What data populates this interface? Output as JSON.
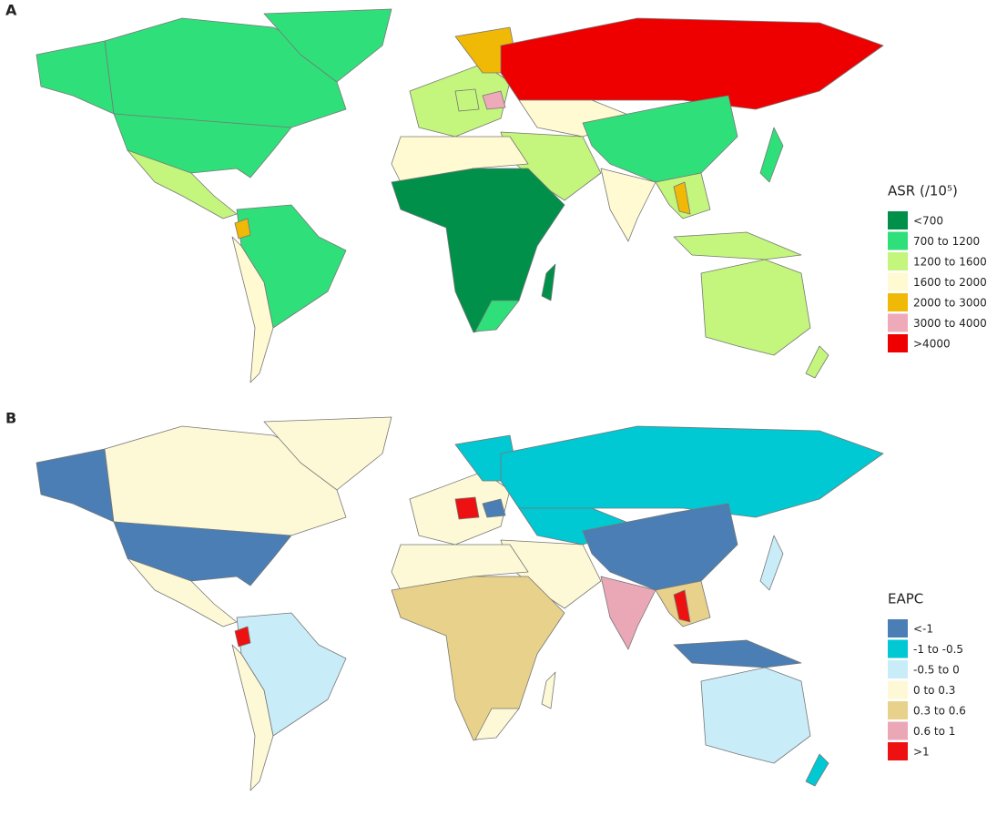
{
  "panels": [
    {
      "label": "A",
      "legend": {
        "title": "ASR (/10⁵)",
        "items": [
          {
            "label": "<700",
            "color": "#00904a"
          },
          {
            "label": "700 to 1200",
            "color": "#2fe07a"
          },
          {
            "label": "1200 to 1600",
            "color": "#c4f57c"
          },
          {
            "label": "1600 to 2000",
            "color": "#fffad2"
          },
          {
            "label": "2000 to 3000",
            "color": "#f0b905"
          },
          {
            "label": "3000 to 4000",
            "color": "#eeaab9"
          },
          {
            "label": ">4000",
            "color": "#ee0000"
          }
        ]
      }
    },
    {
      "label": "B",
      "legend": {
        "title": "EAPC",
        "items": [
          {
            "label": "<-1",
            "color": "#4a7eb4"
          },
          {
            "label": "-1 to -0.5",
            "color": "#00c9d3"
          },
          {
            "label": "-0.5 to 0",
            "color": "#c8ecf8"
          },
          {
            "label": "0 to 0.3",
            "color": "#fdf9d6"
          },
          {
            "label": "0.3 to 0.6",
            "color": "#e7d18b"
          },
          {
            "label": "0.6 to 1",
            "color": "#eaa8b7"
          },
          {
            "label": ">1",
            "color": "#ee1111"
          }
        ]
      }
    }
  ]
}
